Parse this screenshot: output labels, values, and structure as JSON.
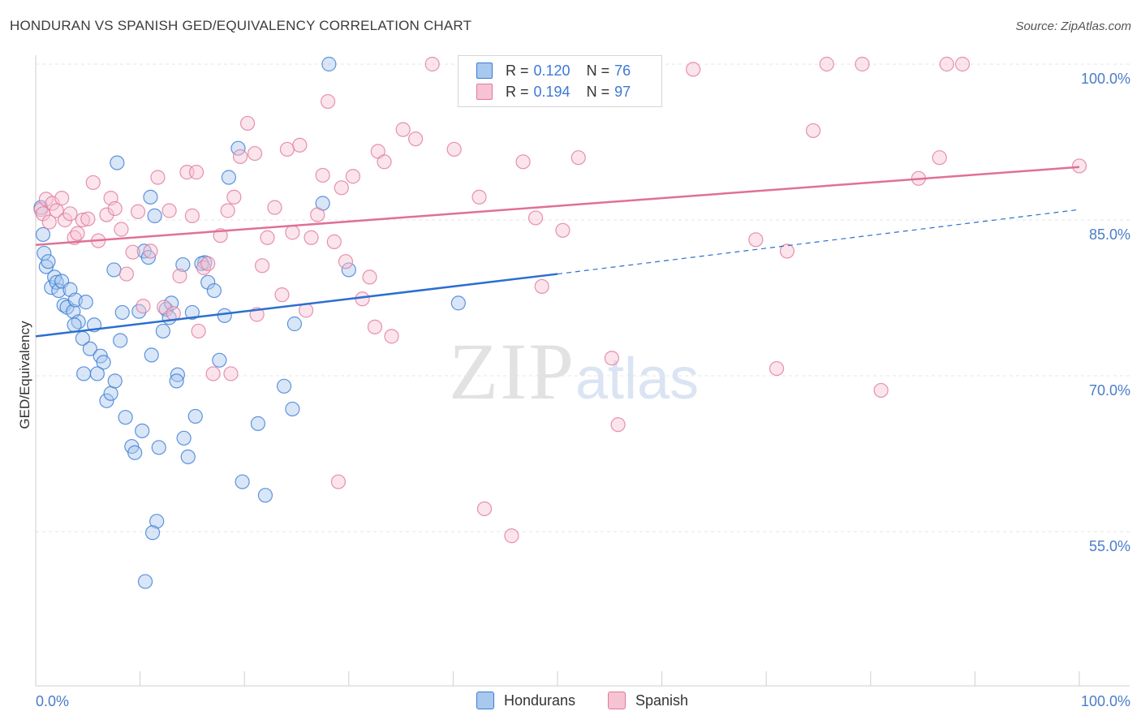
{
  "title": "HONDURAN VS SPANISH GED/EQUIVALENCY CORRELATION CHART",
  "source": "Source: ZipAtlas.com",
  "watermark": {
    "zip": "ZIP",
    "atlas": "atlas"
  },
  "legend_top": [
    {
      "r_label": "R =",
      "r_value": "0.120",
      "n_label": "N =",
      "n_value": "76"
    },
    {
      "r_label": "R =",
      "r_value": "0.194",
      "n_label": "N =",
      "n_value": "97"
    }
  ],
  "colors": {
    "blue": "#3a7bd5",
    "blue_fill": "#a9c8ee",
    "blue_line": "#2c6fcf",
    "pink": "#e0789c",
    "pink_fill": "#f7c3d3",
    "pink_line": "#e07098",
    "axis_text": "#4a7cc9",
    "grid": "#e4e4e4"
  },
  "chart_data": {
    "type": "scatter",
    "title": "HONDURAN VS SPANISH GED/EQUIVALENCY CORRELATION CHART",
    "xlabel": "",
    "ylabel": "GED/Equivalency",
    "x_tick_labels": [
      "0.0%",
      "100.0%"
    ],
    "y_tick_labels": [
      "100.0%",
      "85.0%",
      "70.0%",
      "55.0%"
    ],
    "xlim": [
      0,
      100
    ],
    "ylim": [
      40,
      101
    ],
    "series": [
      {
        "name": "Hondurans",
        "r": 0.12,
        "n": 76,
        "trend": {
          "x0": 0,
          "y0": 73.8,
          "x1": 50,
          "y1": 79.8,
          "x_dashed_end": 100,
          "y_dashed_end": 86.0
        },
        "points": [
          [
            0.5,
            86.2
          ],
          [
            0.7,
            83.6
          ],
          [
            0.8,
            81.8
          ],
          [
            1.0,
            80.5
          ],
          [
            1.2,
            81.0
          ],
          [
            1.5,
            78.5
          ],
          [
            1.8,
            79.5
          ],
          [
            2.0,
            79.0
          ],
          [
            2.2,
            78.2
          ],
          [
            2.5,
            79.1
          ],
          [
            2.7,
            76.8
          ],
          [
            3.0,
            76.6
          ],
          [
            3.3,
            78.3
          ],
          [
            3.6,
            76.2
          ],
          [
            3.8,
            77.3
          ],
          [
            4.1,
            75.2
          ],
          [
            4.5,
            73.6
          ],
          [
            4.8,
            77.1
          ],
          [
            5.2,
            72.6
          ],
          [
            5.6,
            74.9
          ],
          [
            6.2,
            71.9
          ],
          [
            6.5,
            71.3
          ],
          [
            3.7,
            74.9
          ],
          [
            4.6,
            70.2
          ],
          [
            5.9,
            70.2
          ],
          [
            6.8,
            67.6
          ],
          [
            7.2,
            68.3
          ],
          [
            7.6,
            69.5
          ],
          [
            8.1,
            73.4
          ],
          [
            8.6,
            66.0
          ],
          [
            9.2,
            63.2
          ],
          [
            9.5,
            62.6
          ],
          [
            10.2,
            64.7
          ],
          [
            11.1,
            72.0
          ],
          [
            11.8,
            63.1
          ],
          [
            12.5,
            76.4
          ],
          [
            13.0,
            77.0
          ],
          [
            13.6,
            70.1
          ],
          [
            14.2,
            64.0
          ],
          [
            14.6,
            62.2
          ],
          [
            15.3,
            66.1
          ],
          [
            16.2,
            80.9
          ],
          [
            16.5,
            79.0
          ],
          [
            17.1,
            78.2
          ],
          [
            17.6,
            71.5
          ],
          [
            18.1,
            75.8
          ],
          [
            18.5,
            89.1
          ],
          [
            19.4,
            91.9
          ],
          [
            19.8,
            59.8
          ],
          [
            21.3,
            65.4
          ],
          [
            22.0,
            58.5
          ],
          [
            23.8,
            69.0
          ],
          [
            24.8,
            75.0
          ],
          [
            24.6,
            66.8
          ],
          [
            27.5,
            86.6
          ],
          [
            28.1,
            100.0
          ],
          [
            30.0,
            80.2
          ],
          [
            40.5,
            77.0
          ],
          [
            50.0,
            100.0
          ],
          [
            7.8,
            90.5
          ],
          [
            9.9,
            76.2
          ],
          [
            10.4,
            82.0
          ],
          [
            10.8,
            81.4
          ],
          [
            11.4,
            85.4
          ],
          [
            11.0,
            87.2
          ],
          [
            12.2,
            74.3
          ],
          [
            12.8,
            75.6
          ],
          [
            13.5,
            69.5
          ],
          [
            14.1,
            80.7
          ],
          [
            15.0,
            76.1
          ],
          [
            15.9,
            80.8
          ],
          [
            11.6,
            56.0
          ],
          [
            11.2,
            54.9
          ],
          [
            10.5,
            50.2
          ],
          [
            7.5,
            80.2
          ],
          [
            8.3,
            76.1
          ]
        ]
      },
      {
        "name": "Spanish",
        "r": 0.194,
        "n": 97,
        "trend": {
          "x0": 0,
          "y0": 82.6,
          "x1": 100,
          "y1": 90.1
        },
        "points": [
          [
            0.5,
            86.0
          ],
          [
            0.7,
            85.6
          ],
          [
            1.0,
            87.0
          ],
          [
            1.3,
            84.8
          ],
          [
            1.6,
            86.6
          ],
          [
            2.0,
            85.9
          ],
          [
            2.5,
            87.1
          ],
          [
            2.8,
            85.0
          ],
          [
            3.3,
            85.6
          ],
          [
            3.7,
            83.3
          ],
          [
            4.0,
            83.7
          ],
          [
            4.5,
            85.0
          ],
          [
            5.0,
            85.1
          ],
          [
            5.5,
            88.6
          ],
          [
            6.0,
            83.0
          ],
          [
            6.8,
            85.5
          ],
          [
            7.2,
            87.1
          ],
          [
            7.6,
            86.1
          ],
          [
            8.2,
            84.1
          ],
          [
            8.7,
            79.8
          ],
          [
            9.3,
            81.9
          ],
          [
            9.8,
            85.8
          ],
          [
            10.3,
            76.7
          ],
          [
            11.0,
            82.0
          ],
          [
            11.7,
            89.1
          ],
          [
            12.3,
            76.6
          ],
          [
            12.8,
            85.9
          ],
          [
            13.2,
            76.0
          ],
          [
            13.8,
            79.6
          ],
          [
            14.5,
            89.6
          ],
          [
            15.0,
            85.4
          ],
          [
            15.6,
            74.3
          ],
          [
            16.1,
            80.4
          ],
          [
            16.5,
            80.8
          ],
          [
            17.0,
            70.2
          ],
          [
            17.7,
            83.5
          ],
          [
            18.4,
            85.9
          ],
          [
            19.0,
            87.2
          ],
          [
            19.6,
            91.1
          ],
          [
            20.3,
            94.3
          ],
          [
            21.0,
            91.4
          ],
          [
            21.7,
            80.6
          ],
          [
            22.2,
            83.3
          ],
          [
            22.9,
            86.2
          ],
          [
            23.6,
            77.8
          ],
          [
            24.1,
            91.8
          ],
          [
            24.6,
            83.8
          ],
          [
            25.3,
            92.2
          ],
          [
            25.9,
            76.3
          ],
          [
            26.4,
            83.3
          ],
          [
            27.0,
            85.5
          ],
          [
            27.5,
            89.3
          ],
          [
            28.0,
            96.4
          ],
          [
            28.6,
            82.9
          ],
          [
            29.3,
            88.1
          ],
          [
            29.7,
            81.0
          ],
          [
            30.4,
            89.2
          ],
          [
            31.3,
            77.4
          ],
          [
            32.0,
            79.5
          ],
          [
            32.5,
            74.7
          ],
          [
            32.8,
            91.6
          ],
          [
            33.4,
            90.6
          ],
          [
            34.1,
            73.8
          ],
          [
            35.2,
            93.7
          ],
          [
            36.4,
            92.8
          ],
          [
            38.0,
            100.0
          ],
          [
            40.1,
            91.8
          ],
          [
            41.5,
            100.0
          ],
          [
            42.5,
            87.2
          ],
          [
            43.0,
            57.2
          ],
          [
            45.5,
            100.0
          ],
          [
            45.6,
            54.6
          ],
          [
            46.7,
            90.6
          ],
          [
            47.9,
            85.2
          ],
          [
            48.5,
            78.6
          ],
          [
            50.5,
            84.0
          ],
          [
            52.0,
            91.0
          ],
          [
            55.2,
            71.7
          ],
          [
            55.8,
            65.3
          ],
          [
            58.1,
            100.0
          ],
          [
            63.0,
            99.5
          ],
          [
            69.0,
            83.1
          ],
          [
            71.0,
            70.7
          ],
          [
            72.0,
            82.0
          ],
          [
            74.5,
            93.6
          ],
          [
            75.8,
            100.0
          ],
          [
            79.2,
            100.0
          ],
          [
            81.0,
            68.6
          ],
          [
            84.6,
            89.0
          ],
          [
            86.6,
            91.0
          ],
          [
            87.3,
            100.0
          ],
          [
            88.8,
            100.0
          ],
          [
            100.0,
            90.2
          ],
          [
            18.7,
            70.2
          ],
          [
            29.0,
            59.8
          ],
          [
            15.4,
            89.6
          ],
          [
            21.2,
            75.9
          ]
        ]
      }
    ],
    "legend_bottom": [
      "Hondurans",
      "Spanish"
    ]
  }
}
